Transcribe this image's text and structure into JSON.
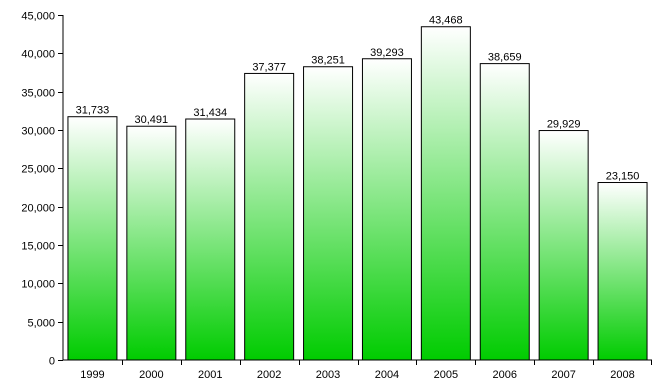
{
  "chart_data": {
    "type": "bar",
    "title": "",
    "xlabel": "",
    "ylabel": "",
    "categories": [
      "1999",
      "2000",
      "2001",
      "2002",
      "2003",
      "2004",
      "2005",
      "2006",
      "2007",
      "2008"
    ],
    "values": [
      31733,
      30491,
      31434,
      37377,
      38251,
      39293,
      43468,
      38659,
      29929,
      23150
    ],
    "data_labels": [
      "31,733",
      "30,491",
      "31,434",
      "37,377",
      "38,251",
      "39,293",
      "43,468",
      "38,659",
      "29,929",
      "23,150"
    ],
    "ylim": [
      0,
      45000
    ],
    "yticks": [
      0,
      5000,
      10000,
      15000,
      20000,
      25000,
      30000,
      35000,
      40000,
      45000
    ],
    "ytick_labels": [
      "0",
      "5,000",
      "10,000",
      "15,000",
      "20,000",
      "25,000",
      "30,000",
      "35,000",
      "40,000",
      "45,000"
    ],
    "grid": false,
    "legend": "none",
    "colors": {
      "bar_top": "#ffffff",
      "bar_bottom": "#00cc00",
      "bar_border": "#000000",
      "axis": "#000000"
    }
  }
}
